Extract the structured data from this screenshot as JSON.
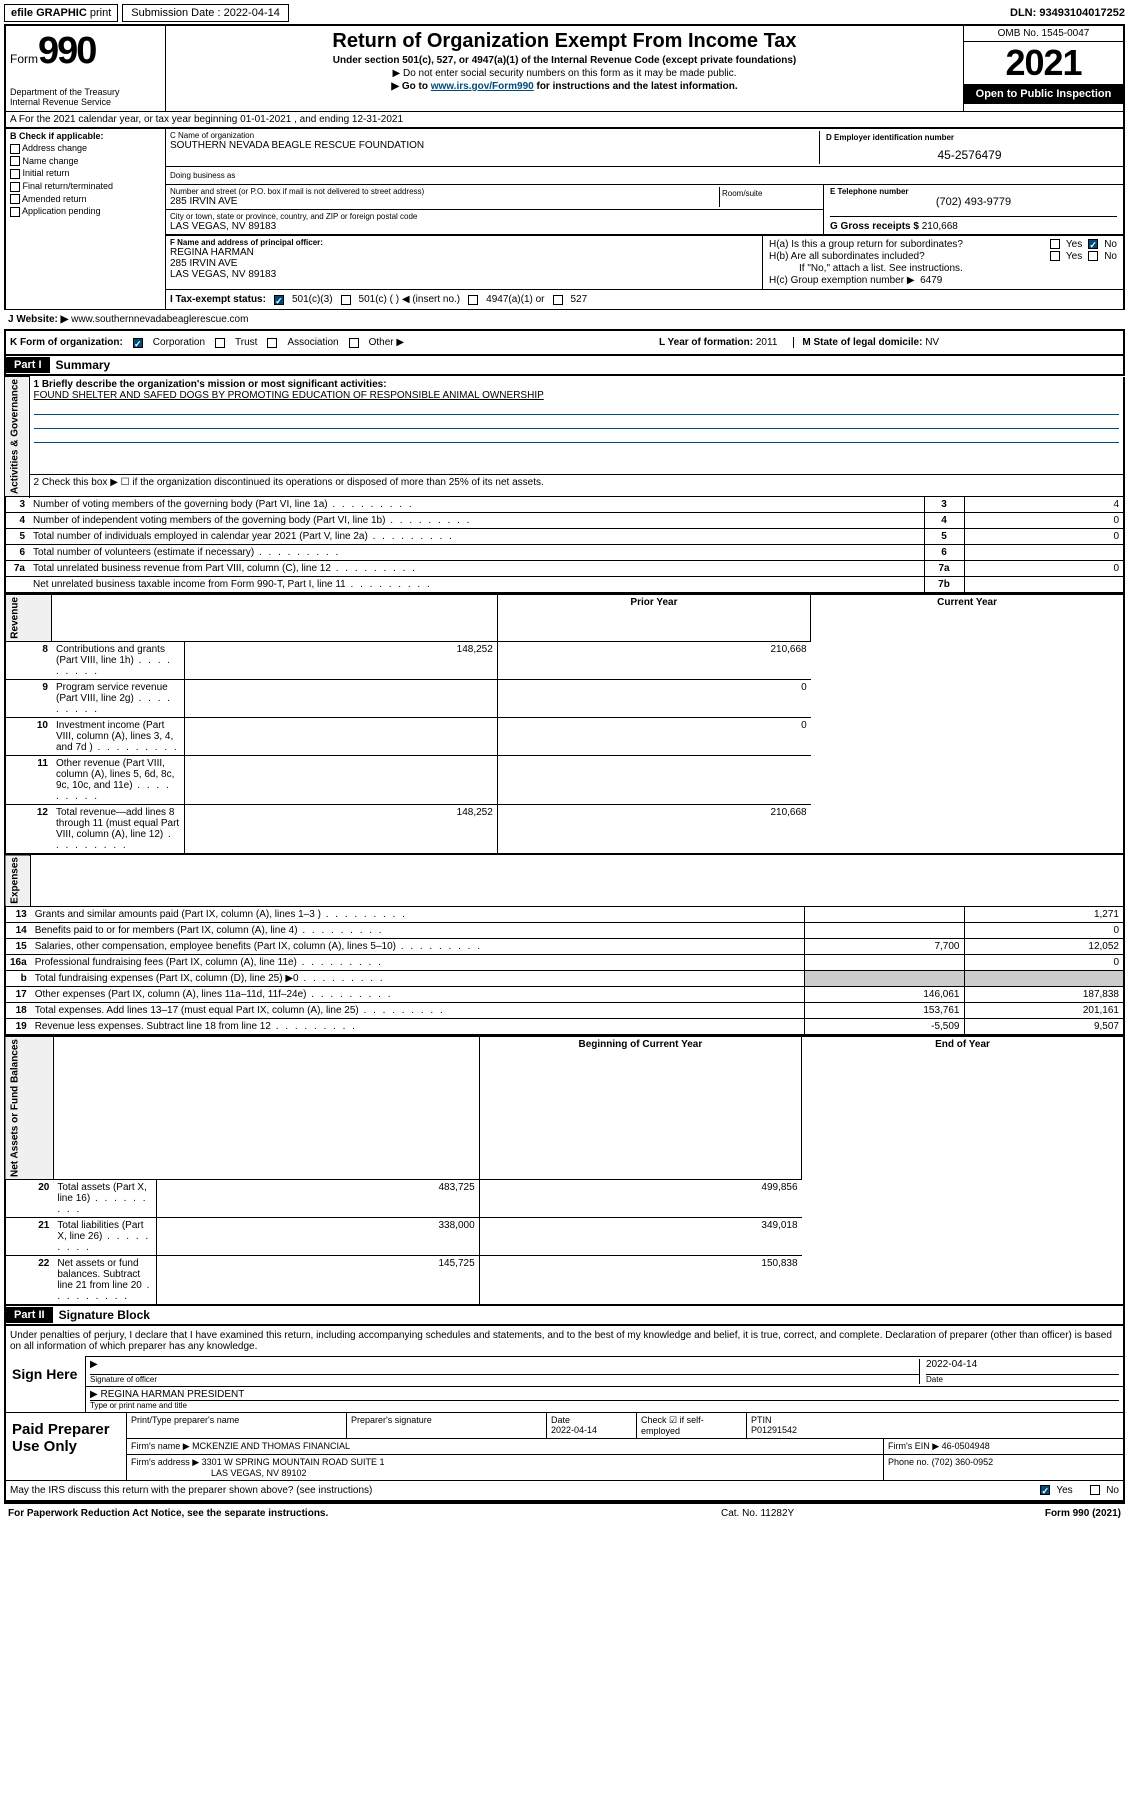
{
  "top": {
    "efile": "efile GRAPHIC",
    "print": "print",
    "submission": "Submission Date : 2022-04-14",
    "dln": "DLN: 93493104017252"
  },
  "header": {
    "form_word": "Form",
    "form_num": "990",
    "dept": "Department of the Treasury\nInternal Revenue Service",
    "title": "Return of Organization Exempt From Income Tax",
    "subtitle": "Under section 501(c), 527, or 4947(a)(1) of the Internal Revenue Code (except private foundations)",
    "instr1": "▶ Do not enter social security numbers on this form as it may be made public.",
    "instr2_pre": "▶ Go to ",
    "instr2_link": "www.irs.gov/Form990",
    "instr2_post": " for instructions and the latest information.",
    "omb": "OMB No. 1545-0047",
    "year": "2021",
    "open_pub": "Open to Public Inspection"
  },
  "section_a": "A For the 2021 calendar year, or tax year beginning 01-01-2021   , and ending 12-31-2021",
  "col_b": {
    "label": "B Check if applicable:",
    "opts": [
      "Address change",
      "Name change",
      "Initial return",
      "Final return/terminated",
      "Amended return",
      "Application pending"
    ]
  },
  "org": {
    "c_label": "C Name of organization",
    "name": "SOUTHERN NEVADA BEAGLE RESCUE FOUNDATION",
    "dba_label": "Doing business as",
    "street_label": "Number and street (or P.O. box if mail is not delivered to street address)",
    "room_label": "Room/suite",
    "street": "285 IRVIN AVE",
    "city_label": "City or town, state or province, country, and ZIP or foreign postal code",
    "city": "LAS VEGAS, NV  89183",
    "d_label": "D Employer identification number",
    "ein": "45-2576479",
    "e_label": "E Telephone number",
    "phone": "(702) 493-9779",
    "g_label": "G Gross receipts $",
    "gross": "210,668",
    "f_label": "F Name and address of principal officer:",
    "officer_name": "REGINA HARMAN",
    "officer_addr1": "285 IRVIN AVE",
    "officer_addr2": "LAS VEGAS, NV  89183"
  },
  "h": {
    "h_a": "H(a)  Is this a group return for subordinates?",
    "h_b": "H(b)  Are all subordinates included?",
    "h_b_note": "If \"No,\" attach a list. See instructions.",
    "h_c": "H(c)  Group exemption number ▶",
    "h_c_val": "6479",
    "yes": "Yes",
    "no": "No"
  },
  "i": {
    "label": "I    Tax-exempt status:",
    "opt1": "501(c)(3)",
    "opt2": "501(c) (  ) ◀ (insert no.)",
    "opt3": "4947(a)(1) or",
    "opt4": "527"
  },
  "j": {
    "label": "J    Website: ▶",
    "val": "www.southernnevadabeaglerescue.com"
  },
  "k": {
    "label": "K Form of organization:",
    "opts": [
      "Corporation",
      "Trust",
      "Association",
      "Other ▶"
    ],
    "l_label": "L Year of formation:",
    "l_val": "2011",
    "m_label": "M State of legal domicile:",
    "m_val": "NV"
  },
  "part1": {
    "hdr": "Part I",
    "title": "Summary",
    "line1_label": "1   Briefly describe the organization's mission or most significant activities:",
    "mission": "FOUND SHELTER AND SAFED DOGS BY PROMOTING EDUCATION OF RESPONSIBLE ANIMAL OWNERSHIP",
    "line2": "2    Check this box ▶ ☐  if the organization discontinued its operations or disposed of more than 25% of its net assets.",
    "sides": {
      "gov": "Activities & Governance",
      "rev": "Revenue",
      "exp": "Expenses",
      "net": "Net Assets or Fund Balances"
    },
    "lines": [
      {
        "n": "3",
        "t": "Number of voting members of the governing body (Part VI, line 1a)",
        "box": "3",
        "v": "4"
      },
      {
        "n": "4",
        "t": "Number of independent voting members of the governing body (Part VI, line 1b)",
        "box": "4",
        "v": "0"
      },
      {
        "n": "5",
        "t": "Total number of individuals employed in calendar year 2021 (Part V, line 2a)",
        "box": "5",
        "v": "0"
      },
      {
        "n": "6",
        "t": "Total number of volunteers (estimate if necessary)",
        "box": "6",
        "v": ""
      },
      {
        "n": "7a",
        "t": "Total unrelated business revenue from Part VIII, column (C), line 12",
        "box": "7a",
        "v": "0"
      },
      {
        "n": "",
        "t": "Net unrelated business taxable income from Form 990-T, Part I, line 11",
        "box": "7b",
        "v": ""
      }
    ],
    "hdr_prior": "Prior Year",
    "hdr_curr": "Current Year",
    "rev_lines": [
      {
        "n": "8",
        "t": "Contributions and grants (Part VIII, line 1h)",
        "p": "148,252",
        "c": "210,668"
      },
      {
        "n": "9",
        "t": "Program service revenue (Part VIII, line 2g)",
        "p": "",
        "c": "0"
      },
      {
        "n": "10",
        "t": "Investment income (Part VIII, column (A), lines 3, 4, and 7d )",
        "p": "",
        "c": "0"
      },
      {
        "n": "11",
        "t": "Other revenue (Part VIII, column (A), lines 5, 6d, 8c, 9c, 10c, and 11e)",
        "p": "",
        "c": ""
      },
      {
        "n": "12",
        "t": "Total revenue—add lines 8 through 11 (must equal Part VIII, column (A), line 12)",
        "p": "148,252",
        "c": "210,668"
      }
    ],
    "exp_lines": [
      {
        "n": "13",
        "t": "Grants and similar amounts paid (Part IX, column (A), lines 1–3 )",
        "p": "",
        "c": "1,271"
      },
      {
        "n": "14",
        "t": "Benefits paid to or for members (Part IX, column (A), line 4)",
        "p": "",
        "c": "0"
      },
      {
        "n": "15",
        "t": "Salaries, other compensation, employee benefits (Part IX, column (A), lines 5–10)",
        "p": "7,700",
        "c": "12,052"
      },
      {
        "n": "16a",
        "t": "Professional fundraising fees (Part IX, column (A), line 11e)",
        "p": "",
        "c": "0"
      },
      {
        "n": "b",
        "t": "Total fundraising expenses (Part IX, column (D), line 25) ▶0",
        "p": "gray",
        "c": "gray"
      },
      {
        "n": "17",
        "t": "Other expenses (Part IX, column (A), lines 11a–11d, 11f–24e)",
        "p": "146,061",
        "c": "187,838"
      },
      {
        "n": "18",
        "t": "Total expenses. Add lines 13–17 (must equal Part IX, column (A), line 25)",
        "p": "153,761",
        "c": "201,161"
      },
      {
        "n": "19",
        "t": "Revenue less expenses. Subtract line 18 from line 12",
        "p": "-5,509",
        "c": "9,507"
      }
    ],
    "hdr_begin": "Beginning of Current Year",
    "hdr_end": "End of Year",
    "net_lines": [
      {
        "n": "20",
        "t": "Total assets (Part X, line 16)",
        "p": "483,725",
        "c": "499,856"
      },
      {
        "n": "21",
        "t": "Total liabilities (Part X, line 26)",
        "p": "338,000",
        "c": "349,018"
      },
      {
        "n": "22",
        "t": "Net assets or fund balances. Subtract line 21 from line 20",
        "p": "145,725",
        "c": "150,838"
      }
    ]
  },
  "part2": {
    "hdr": "Part II",
    "title": "Signature Block",
    "decl": "Under penalties of perjury, I declare that I have examined this return, including accompanying schedules and statements, and to the best of my knowledge and belief, it is true, correct, and complete. Declaration of preparer (other than officer) is based on all information of which preparer has any knowledge.",
    "sign_here": "Sign Here",
    "sig_officer": "Signature of officer",
    "sig_date_val": "2022-04-14",
    "date_lbl": "Date",
    "officer": "REGINA HARMAN  PRESIDENT",
    "type_name": "Type or print name and title",
    "paid": "Paid Preparer Use Only",
    "prep_name_lbl": "Print/Type preparer's name",
    "prep_sig_lbl": "Preparer's signature",
    "prep_date": "2022-04-14",
    "check_if": "Check ☑ if self-employed",
    "ptin_lbl": "PTIN",
    "ptin": "P01291542",
    "firm_name_lbl": "Firm's name    ▶",
    "firm_name": "MCKENZIE AND THOMAS FINANCIAL",
    "firm_ein_lbl": "Firm's EIN ▶",
    "firm_ein": "46-0504948",
    "firm_addr_lbl": "Firm's address ▶",
    "firm_addr": "3301 W SPRING MOUNTAIN ROAD SUITE 1",
    "firm_city": "LAS VEGAS, NV  89102",
    "firm_phone_lbl": "Phone no.",
    "firm_phone": "(702) 360-0952",
    "may_irs": "May the IRS discuss this return with the preparer shown above? (see instructions)"
  },
  "footer": {
    "left": "For Paperwork Reduction Act Notice, see the separate instructions.",
    "mid": "Cat. No. 11282Y",
    "right": "Form 990 (2021)"
  }
}
